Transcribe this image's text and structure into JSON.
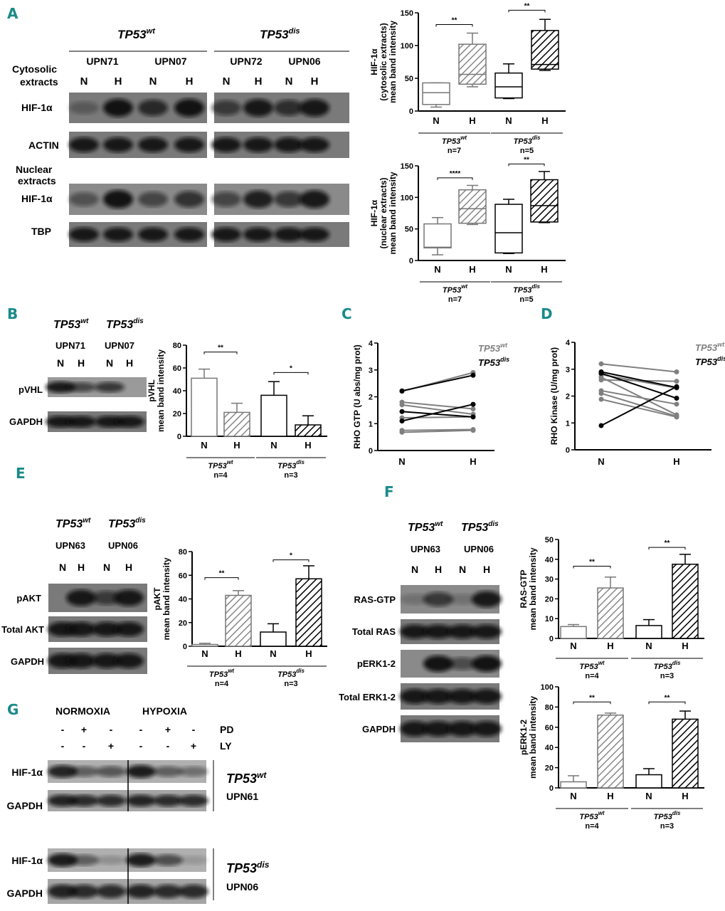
{
  "panels": {
    "A": "A",
    "B": "B",
    "C": "C",
    "D": "D",
    "E": "E",
    "F": "F",
    "G": "G"
  },
  "genotype": {
    "base": "TP53",
    "wt": "wt",
    "dis": "dis"
  },
  "cond": {
    "N": "N",
    "H": "H"
  },
  "panelA": {
    "row_labels": {
      "cyto1": "Cytosolic",
      "cyto2": "extracts",
      "hif": "HIF-1α",
      "actin": "ACTIN",
      "nuc1": "Nuclear",
      "nuc2": "extracts",
      "hif2": "HIF-1α",
      "tbp": "TBP"
    },
    "samples": [
      "UPN71",
      "UPN07",
      "UPN72",
      "UPN06"
    ]
  },
  "panelB": {
    "samples": [
      "UPN71",
      "UPN07"
    ],
    "rows": [
      "pVHL",
      "GAPDH"
    ]
  },
  "panelE": {
    "samples": [
      "UPN63",
      "UPN06"
    ],
    "rows": [
      "pAKT",
      "Total AKT",
      "GAPDH"
    ]
  },
  "panelF": {
    "samples": [
      "UPN63",
      "UPN06"
    ],
    "rows": [
      "RAS-GTP",
      "Total RAS",
      "pERK1-2",
      "Total ERK1-2",
      "GAPDH"
    ]
  },
  "panelG": {
    "normoxia": "NORMOXIA",
    "hypoxia": "HYPOXIA",
    "pd_label": "PD",
    "ly_label": "LY",
    "pd": [
      "-",
      "+",
      "-",
      "-",
      "+",
      "-"
    ],
    "ly": [
      "-",
      "-",
      "+",
      "-",
      "-",
      "+"
    ],
    "rows": [
      "HIF-1α",
      "GAPDH",
      "HIF-1α",
      "GAPDH"
    ],
    "samples": [
      "UPN61",
      "UPN06"
    ]
  },
  "colors": {
    "panel_letter": "#1a8a8a",
    "wt": "#808080",
    "dis": "#000000"
  },
  "chart_data": [
    {
      "id": "A1",
      "type": "box",
      "ylabel": [
        "HIF-1α",
        "(cytosolic extracts)",
        "mean band intensity"
      ],
      "ylim": [
        0,
        150
      ],
      "yticks": [
        0,
        50,
        100,
        150
      ],
      "categories": [
        "N",
        "H",
        "N",
        "H"
      ],
      "groups": [
        {
          "sup": "wt",
          "n": "n=7"
        },
        {
          "sup": "dis",
          "n": "n=5"
        }
      ],
      "boxes": [
        {
          "min": 6,
          "q1": 10,
          "median": 28,
          "q3": 43,
          "max": 43
        },
        {
          "min": 37,
          "q1": 41,
          "median": 56,
          "q3": 102,
          "max": 119
        },
        {
          "min": 19,
          "q1": 20,
          "median": 37,
          "q3": 58,
          "max": 72
        },
        {
          "min": 62,
          "q1": 64,
          "median": 71,
          "q3": 123,
          "max": 140
        }
      ],
      "significance": [
        {
          "label": "**",
          "y": 132
        },
        {
          "label": "**",
          "y": 154
        }
      ]
    },
    {
      "id": "A2",
      "type": "box",
      "ylabel": [
        "HIF-1α",
        "(nuclear extracts)",
        "mean band intensity"
      ],
      "ylim": [
        0,
        150
      ],
      "yticks": [
        0,
        50,
        100,
        150
      ],
      "categories": [
        "N",
        "H",
        "N",
        "H"
      ],
      "groups": [
        {
          "sup": "wt",
          "n": "n=7"
        },
        {
          "sup": "dis",
          "n": "n=5"
        }
      ],
      "boxes": [
        {
          "min": 9,
          "q1": 20,
          "median": 21,
          "q3": 58,
          "max": 68
        },
        {
          "min": 57,
          "q1": 59,
          "median": 82,
          "q3": 112,
          "max": 119
        },
        {
          "min": 11,
          "q1": 12,
          "median": 44,
          "q3": 89,
          "max": 97
        },
        {
          "min": 60,
          "q1": 61,
          "median": 87,
          "q3": 128,
          "max": 141
        }
      ],
      "significance": [
        {
          "label": "****",
          "y": 131
        },
        {
          "label": "**",
          "y": 153
        }
      ]
    },
    {
      "id": "B",
      "type": "bar",
      "ylabel": [
        "pVHL",
        "mean band intensity"
      ],
      "ylim": [
        0,
        80
      ],
      "yticks": [
        0,
        20,
        40,
        60,
        80
      ],
      "categories": [
        "N",
        "H",
        "N",
        "H"
      ],
      "groups": [
        {
          "sup": "wt",
          "n": "n=4"
        },
        {
          "sup": "dis",
          "n": "n=3"
        }
      ],
      "values": [
        51,
        21,
        36,
        10
      ],
      "errors": [
        8,
        8,
        12,
        8
      ],
      "significance": [
        {
          "label": "**",
          "y": 74
        },
        {
          "label": "*",
          "y": 56
        }
      ]
    },
    {
      "id": "C",
      "type": "line",
      "ylabel": [
        "RHO GTP (U abs/mg prot)"
      ],
      "ylim": [
        0,
        4
      ],
      "yticks": [
        0,
        1,
        2,
        3,
        4
      ],
      "categories": [
        "N",
        "H"
      ],
      "legend": [
        "wt",
        "dis"
      ],
      "series": [
        {
          "group": "wt",
          "values": [
            2.2,
            2.9
          ]
        },
        {
          "group": "wt",
          "values": [
            1.8,
            1.55
          ]
        },
        {
          "group": "wt",
          "values": [
            1.7,
            1.35
          ]
        },
        {
          "group": "wt",
          "values": [
            1.22,
            1.25
          ]
        },
        {
          "group": "wt",
          "values": [
            0.75,
            0.78
          ]
        },
        {
          "group": "wt",
          "values": [
            0.68,
            0.75
          ]
        },
        {
          "group": "dis",
          "values": [
            2.22,
            2.8
          ]
        },
        {
          "group": "dis",
          "values": [
            1.45,
            1.25
          ]
        },
        {
          "group": "dis",
          "values": [
            1.1,
            1.72
          ]
        }
      ]
    },
    {
      "id": "D",
      "type": "line",
      "ylabel": [
        "RHO Kinase (U/mg prot)"
      ],
      "ylim": [
        0,
        4
      ],
      "yticks": [
        0,
        1,
        2,
        3,
        4
      ],
      "categories": [
        "N",
        "H"
      ],
      "legend": [
        "wt",
        "dis"
      ],
      "series": [
        {
          "group": "wt",
          "values": [
            3.2,
            2.9
          ]
        },
        {
          "group": "wt",
          "values": [
            2.6,
            2.55
          ]
        },
        {
          "group": "wt",
          "values": [
            2.7,
            1.3
          ]
        },
        {
          "group": "wt",
          "values": [
            2.2,
            1.7
          ]
        },
        {
          "group": "wt",
          "values": [
            2.1,
            1.25
          ]
        },
        {
          "group": "wt",
          "values": [
            1.88,
            1.22
          ]
        },
        {
          "group": "wt",
          "values": [
            2.8,
            2.3
          ]
        },
        {
          "group": "dis",
          "values": [
            2.9,
            2.32
          ]
        },
        {
          "group": "dis",
          "values": [
            2.85,
            1.92
          ]
        },
        {
          "group": "dis",
          "values": [
            0.9,
            2.35
          ]
        }
      ]
    },
    {
      "id": "E",
      "type": "bar",
      "ylabel": [
        "pAKT",
        "mean band intensity"
      ],
      "ylim": [
        0,
        80
      ],
      "yticks": [
        0,
        20,
        40,
        60,
        80
      ],
      "categories": [
        "N",
        "H",
        "N",
        "H"
      ],
      "groups": [
        {
          "sup": "wt",
          "n": "n=4"
        },
        {
          "sup": "dis",
          "n": "n=3"
        }
      ],
      "values": [
        1.5,
        43,
        12,
        57
      ],
      "errors": [
        1,
        4,
        7,
        11
      ],
      "significance": [
        {
          "label": "**",
          "y": 58
        },
        {
          "label": "*",
          "y": 73
        }
      ]
    },
    {
      "id": "F1",
      "type": "bar",
      "ylabel": [
        "RAS-GTP",
        "mean band intensity"
      ],
      "ylim": [
        0,
        50
      ],
      "yticks": [
        0,
        10,
        20,
        30,
        40,
        50
      ],
      "categories": [
        "N",
        "H",
        "N",
        "H"
      ],
      "groups": [
        {
          "sup": "wt",
          "n": "n=4"
        },
        {
          "sup": "dis",
          "n": "n=3"
        }
      ],
      "values": [
        6,
        25.5,
        6.5,
        37.5
      ],
      "errors": [
        1,
        5.5,
        3,
        5
      ],
      "significance": [
        {
          "label": "**",
          "y": 36.5
        },
        {
          "label": "**",
          "y": 46
        }
      ]
    },
    {
      "id": "F2",
      "type": "bar",
      "ylabel": [
        "pERK1-2",
        "mean band intensity"
      ],
      "ylim": [
        0,
        100
      ],
      "yticks": [
        0,
        20,
        40,
        60,
        80,
        100
      ],
      "categories": [
        "N",
        "H",
        "N",
        "H"
      ],
      "groups": [
        {
          "sup": "wt",
          "n": "n=4"
        },
        {
          "sup": "dis",
          "n": "n=3"
        }
      ],
      "values": [
        6,
        72,
        13,
        68
      ],
      "errors": [
        6,
        2,
        6,
        8
      ],
      "significance": [
        {
          "label": "**",
          "y": 85
        },
        {
          "label": "**",
          "y": 85
        }
      ]
    }
  ]
}
